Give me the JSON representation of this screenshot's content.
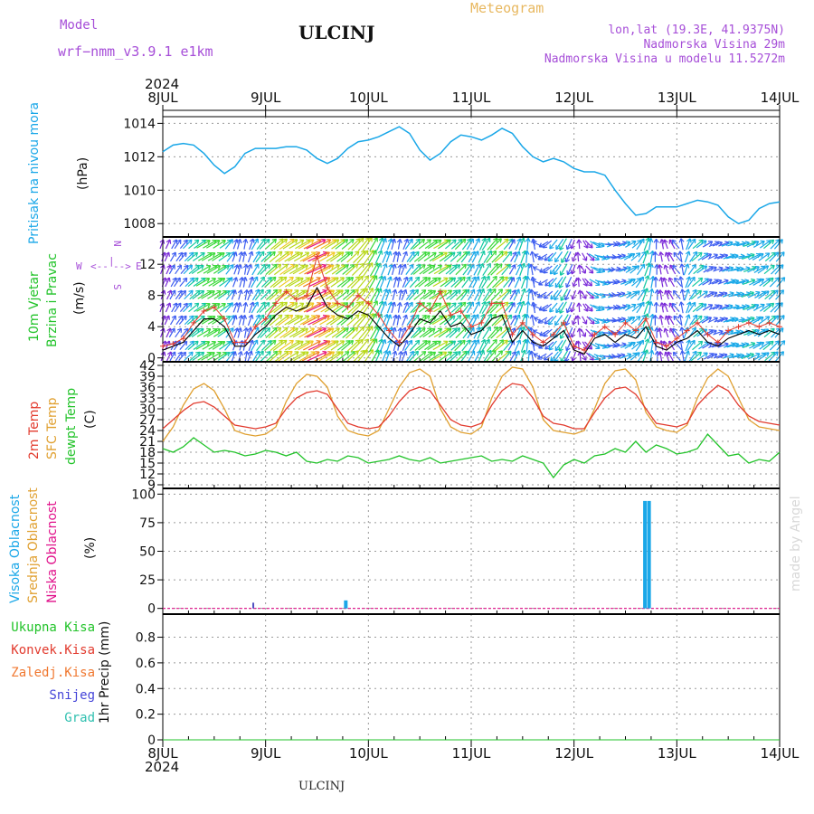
{
  "header": {
    "model_label": "Model",
    "model_name": "wrf−nmm_v3.9.1  e1km",
    "city": "ULCINJ",
    "meteogram": "Meteogram",
    "lonlat": "lon,lat (19.3E, 41.9375N)",
    "elevation": "Nadmorska Visina 29m",
    "model_elevation": "Nadmorska Visina u modelu 11.5272m",
    "footer_city": "ULCINJ",
    "credit": "made by Angel"
  },
  "colors": {
    "pressure": "#1aa7e8",
    "wind_speed": "#000000",
    "wind_gust": "#e23b2e",
    "temp2m": "#e23b2e",
    "sfc_temp": "#e0a030",
    "dewpoint": "#22c32a",
    "high_cloud": "#1aa7e8",
    "mid_cloud": "#e0a030",
    "low_cloud": "#e0108a",
    "total_precip": "#22c32a",
    "conv_precip": "#e23b2e",
    "grid": "#9a9a9a"
  },
  "chart_data": [
    {
      "type": "line",
      "name": "pressure",
      "ylabel_left": "Pritisak na nivou mora",
      "ylabel_unit": "(hPa)",
      "ylim": [
        1007.2,
        1014.4
      ],
      "yticks": [
        1008,
        1010,
        1012,
        1014
      ],
      "x_date_labels": [
        "8JUL",
        "9JUL",
        "10JUL",
        "11JUL",
        "12JUL",
        "13JUL",
        "14JUL"
      ],
      "x_year": "2024",
      "x_days": [
        0,
        0.1,
        0.2,
        0.3,
        0.4,
        0.5,
        0.6,
        0.7,
        0.8,
        0.9,
        1.0,
        1.1,
        1.2,
        1.3,
        1.4,
        1.5,
        1.6,
        1.7,
        1.8,
        1.9,
        2.0,
        2.1,
        2.2,
        2.3,
        2.4,
        2.5,
        2.6,
        2.7,
        2.8,
        2.9,
        3.0,
        3.1,
        3.2,
        3.3,
        3.4,
        3.5,
        3.6,
        3.7,
        3.8,
        3.9,
        4.0,
        4.1,
        4.2,
        4.3,
        4.4,
        4.5,
        4.6,
        4.7,
        4.8,
        4.9,
        5.0,
        5.1,
        5.2,
        5.3,
        5.4,
        5.5,
        5.6,
        5.7,
        5.8,
        5.9,
        6.0
      ],
      "values": [
        1012.3,
        1012.7,
        1012.8,
        1012.7,
        1012.2,
        1011.5,
        1011.0,
        1011.4,
        1012.2,
        1012.5,
        1012.5,
        1012.5,
        1012.6,
        1012.6,
        1012.4,
        1011.9,
        1011.6,
        1011.9,
        1012.5,
        1012.9,
        1013.0,
        1013.2,
        1013.5,
        1013.8,
        1013.4,
        1012.4,
        1011.8,
        1012.2,
        1012.9,
        1013.3,
        1013.2,
        1013.0,
        1013.3,
        1013.7,
        1013.4,
        1012.6,
        1012.0,
        1011.7,
        1011.9,
        1011.7,
        1011.3,
        1011.1,
        1011.1,
        1010.9,
        1010.0,
        1009.2,
        1008.5,
        1008.6,
        1009.0,
        1009.0,
        1009.0,
        1009.2,
        1009.4,
        1009.3,
        1009.1,
        1008.4,
        1008.0,
        1008.2,
        1008.9,
        1009.2,
        1009.3
      ]
    },
    {
      "type": "line",
      "name": "wind",
      "ylabel_left_1": "10m Vjetar",
      "ylabel_left_2": "Brzina i Pravac",
      "ylabel_unit": "(m/s)",
      "compass": {
        "n": "N",
        "s": "S",
        "w": "W",
        "e": "E",
        "arrow_left": "<--",
        "arrow_right": "-->",
        "bar": "|"
      },
      "ylim": [
        -0.5,
        15.5
      ],
      "yticks": [
        0,
        4,
        8,
        12
      ],
      "x_days": [
        0,
        0.1,
        0.2,
        0.3,
        0.4,
        0.5,
        0.6,
        0.7,
        0.8,
        0.9,
        1.0,
        1.1,
        1.2,
        1.3,
        1.4,
        1.5,
        1.6,
        1.7,
        1.8,
        1.9,
        2.0,
        2.1,
        2.2,
        2.3,
        2.4,
        2.5,
        2.6,
        2.7,
        2.8,
        2.9,
        3.0,
        3.1,
        3.2,
        3.3,
        3.4,
        3.5,
        3.6,
        3.7,
        3.8,
        3.9,
        4.0,
        4.1,
        4.2,
        4.3,
        4.4,
        4.5,
        4.6,
        4.7,
        4.8,
        4.9,
        5.0,
        5.1,
        5.2,
        5.3,
        5.4,
        5.5,
        5.6,
        5.7,
        5.8,
        5.9,
        6.0
      ],
      "speed": [
        1.0,
        1.5,
        2.0,
        3.5,
        5.0,
        5.0,
        4.0,
        1.5,
        1.5,
        3.0,
        4.0,
        5.5,
        6.5,
        6.0,
        6.5,
        9.0,
        6.5,
        5.5,
        5.0,
        6.0,
        5.5,
        4.0,
        2.5,
        1.5,
        3.0,
        5.0,
        4.5,
        6.0,
        4.0,
        4.5,
        3.0,
        3.5,
        5.0,
        5.5,
        2.0,
        3.5,
        2.0,
        1.5,
        2.5,
        3.5,
        1.0,
        0.5,
        2.5,
        3.0,
        2.0,
        3.0,
        2.5,
        4.0,
        1.5,
        1.0,
        2.0,
        2.5,
        3.5,
        2.0,
        1.5,
        2.5,
        3.0,
        3.5,
        3.0,
        3.5,
        3.0
      ],
      "gust": [
        1.5,
        1.8,
        2.5,
        4.5,
        6.0,
        6.5,
        5.0,
        2.0,
        2.0,
        4.0,
        5.0,
        7.0,
        8.5,
        7.5,
        8.0,
        13.0,
        9.0,
        7.0,
        6.5,
        8.0,
        7.0,
        5.5,
        3.5,
        2.0,
        4.0,
        7.0,
        6.0,
        8.5,
        5.5,
        6.0,
        4.0,
        4.5,
        7.0,
        7.0,
        3.0,
        4.5,
        3.0,
        2.0,
        3.0,
        4.5,
        1.5,
        1.0,
        3.0,
        4.0,
        3.0,
        4.5,
        3.5,
        5.0,
        2.0,
        1.5,
        2.5,
        3.5,
        4.5,
        3.0,
        2.0,
        3.5,
        4.0,
        4.5,
        4.0,
        4.5,
        4.0
      ],
      "direction_deg": [
        200,
        210,
        220,
        230,
        240,
        240,
        235,
        200,
        190,
        210,
        225,
        230,
        235,
        240,
        240,
        245,
        240,
        235,
        230,
        225,
        215,
        205,
        200,
        190,
        215,
        230,
        235,
        240,
        230,
        225,
        210,
        205,
        220,
        230,
        210,
        200,
        170,
        60,
        40,
        30,
        20,
        330,
        300,
        280,
        260,
        250,
        230,
        200,
        180,
        160,
        140,
        200,
        230,
        240,
        250,
        250,
        260,
        250,
        240,
        230,
        220
      ]
    },
    {
      "type": "line",
      "name": "temperature",
      "ylabel_left_1": "2m Temp",
      "ylabel_left_2": "SFC Temp",
      "ylabel_left_3": "dewpt Temp",
      "ylabel_unit": "(C)",
      "ylim": [
        8,
        43
      ],
      "yticks": [
        9,
        12,
        15,
        18,
        21,
        24,
        27,
        30,
        33,
        36,
        39,
        42
      ],
      "x_days": [
        0,
        0.1,
        0.2,
        0.3,
        0.4,
        0.5,
        0.6,
        0.7,
        0.8,
        0.9,
        1.0,
        1.1,
        1.2,
        1.3,
        1.4,
        1.5,
        1.6,
        1.7,
        1.8,
        1.9,
        2.0,
        2.1,
        2.2,
        2.3,
        2.4,
        2.5,
        2.6,
        2.7,
        2.8,
        2.9,
        3.0,
        3.1,
        3.2,
        3.3,
        3.4,
        3.5,
        3.6,
        3.7,
        3.8,
        3.9,
        4.0,
        4.1,
        4.2,
        4.3,
        4.4,
        4.5,
        4.6,
        4.7,
        4.8,
        4.9,
        5.0,
        5.1,
        5.2,
        5.3,
        5.4,
        5.5,
        5.6,
        5.7,
        5.8,
        5.9,
        6.0
      ],
      "temp2m": [
        24.5,
        27.0,
        29.5,
        31.5,
        32.0,
        30.5,
        28.0,
        25.5,
        25.0,
        24.5,
        25.0,
        26.0,
        30.0,
        33.0,
        34.5,
        35.0,
        34.0,
        30.0,
        26.0,
        25.0,
        24.5,
        25.0,
        28.0,
        32.0,
        35.0,
        36.0,
        35.0,
        31.0,
        27.0,
        25.5,
        25.0,
        26.0,
        31.0,
        35.0,
        37.0,
        36.5,
        33.0,
        28.0,
        26.0,
        25.5,
        24.5,
        24.5,
        29.0,
        33.0,
        35.5,
        36.0,
        34.0,
        30.0,
        26.0,
        25.5,
        25.0,
        26.0,
        31.0,
        34.0,
        36.5,
        35.0,
        31.0,
        28.0,
        26.5,
        26.0,
        25.5
      ],
      "sfc_temp": [
        21.0,
        25.0,
        31.0,
        35.5,
        37.0,
        35.0,
        30.0,
        24.0,
        23.0,
        22.5,
        23.0,
        25.0,
        32.0,
        37.0,
        39.5,
        39.0,
        36.0,
        28.0,
        24.0,
        23.0,
        22.5,
        24.0,
        30.0,
        36.0,
        40.0,
        41.0,
        39.0,
        30.0,
        25.0,
        23.5,
        23.0,
        25.0,
        33.0,
        39.0,
        41.5,
        41.0,
        36.0,
        27.0,
        24.0,
        23.5,
        23.0,
        24.0,
        30.0,
        37.0,
        40.5,
        41.0,
        38.0,
        29.0,
        25.0,
        24.0,
        23.5,
        25.5,
        33.0,
        38.5,
        41.0,
        39.0,
        33.0,
        27.0,
        25.0,
        24.5,
        24.0
      ],
      "dewpoint": [
        19.0,
        18.0,
        19.5,
        22.0,
        20.0,
        18.0,
        18.5,
        18.0,
        17.0,
        17.5,
        18.5,
        18.0,
        17.0,
        18.0,
        15.5,
        15.0,
        16.0,
        15.5,
        17.0,
        16.5,
        15.0,
        15.5,
        16.0,
        17.0,
        16.0,
        15.5,
        16.5,
        15.0,
        15.5,
        16.0,
        16.5,
        17.0,
        15.5,
        16.0,
        15.5,
        17.0,
        16.0,
        15.0,
        11.0,
        14.5,
        16.0,
        15.0,
        17.0,
        17.5,
        19.0,
        18.0,
        21.0,
        18.0,
        20.0,
        19.0,
        17.5,
        18.0,
        19.0,
        23.0,
        20.0,
        17.0,
        17.5,
        15.0,
        16.0,
        15.5,
        18.0
      ]
    },
    {
      "type": "bar",
      "name": "cloud",
      "ylabel_left_1": "Visoka Oblacnost",
      "ylabel_left_2": "Srednja Oblacnost",
      "ylabel_left_3": "Niska Oblacnost",
      "ylabel_unit": "(%)",
      "ylim": [
        -5,
        105
      ],
      "yticks": [
        0,
        25,
        50,
        75,
        100
      ],
      "bars": [
        {
          "series": "high",
          "x_day": 1.78,
          "value": 7
        },
        {
          "series": "low",
          "x_day": 0.88,
          "value": 5
        },
        {
          "series": "high",
          "x_day": 4.69,
          "value": 94
        },
        {
          "series": "high",
          "x_day": 4.73,
          "value": 94
        }
      ]
    },
    {
      "type": "line",
      "name": "precipitation",
      "legend": [
        "Ukupna Kisa",
        "Konvek.Kisa",
        "Zaledj.Kisa",
        "Snijeg",
        "Grad"
      ],
      "ylabel_unit": "1hr Precip (mm)",
      "ylim": [
        0,
        0.98
      ],
      "yticks": [
        0,
        0.2,
        0.4,
        0.6,
        0.8
      ],
      "values": [
        0,
        0,
        0,
        0,
        0,
        0,
        0
      ]
    }
  ]
}
